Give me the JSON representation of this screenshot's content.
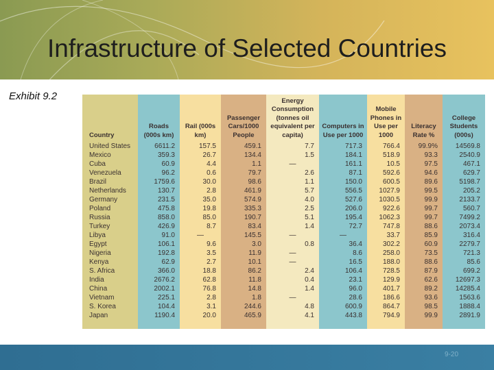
{
  "slide": {
    "title": "Infrastructure of Selected Countries",
    "exhibit": "Exhibit 9.2",
    "page_number": "9-20"
  },
  "table": {
    "headers": {
      "country": "Country",
      "roads": "Roads (000s km)",
      "rail": "Rail (000s km)",
      "passenger": "Passenger Cars/1000 People",
      "energy": "Energy Consumption (tonnes oil equivalent per capita)",
      "computers": "Computers in Use per 1000",
      "mobile": "Mobile Phones in Use per 1000",
      "literacy": "Literacy Rate %",
      "college": "College Students (000s)"
    },
    "rows": [
      {
        "country": "United States",
        "roads": "6611.2",
        "rail": "157.5",
        "passenger": "459.1",
        "energy": "7.7",
        "computers": "717.3",
        "mobile": "766.4",
        "literacy": "99.9%",
        "college": "14569.8"
      },
      {
        "country": "Mexico",
        "roads": "359.3",
        "rail": "26.7",
        "passenger": "134.4",
        "energy": "1.5",
        "computers": "184.1",
        "mobile": "518.9",
        "literacy": "93.3",
        "college": "2540.9"
      },
      {
        "country": "Cuba",
        "roads": "60.9",
        "rail": "4.4",
        "passenger": "1.1",
        "energy": "—",
        "computers": "161.1",
        "mobile": "10.5",
        "literacy": "97.5",
        "college": "467.1"
      },
      {
        "country": "Venezuela",
        "roads": "96.2",
        "rail": "0.6",
        "passenger": "79.7",
        "energy": "2.6",
        "computers": "87.1",
        "mobile": "592.6",
        "literacy": "94.6",
        "college": "629.7"
      },
      {
        "country": "Brazil",
        "roads": "1759.6",
        "rail": "30.0",
        "passenger": "98.6",
        "energy": "1.1",
        "computers": "150.0",
        "mobile": "600.5",
        "literacy": "89.6",
        "college": "5198.7"
      },
      {
        "country": "Netherlands",
        "roads": "130.7",
        "rail": "2.8",
        "passenger": "461.9",
        "energy": "5.7",
        "computers": "556.5",
        "mobile": "1027.9",
        "literacy": "99.5",
        "college": "205.2"
      },
      {
        "country": "Germany",
        "roads": "231.5",
        "rail": "35.0",
        "passenger": "574.9",
        "energy": "4.0",
        "computers": "527.6",
        "mobile": "1030.5",
        "literacy": "99.9",
        "college": "2133.7"
      },
      {
        "country": "Poland",
        "roads": "475.8",
        "rail": "19.8",
        "passenger": "335.3",
        "energy": "2.5",
        "computers": "206.0",
        "mobile": "922.6",
        "literacy": "99.7",
        "college": "560.7"
      },
      {
        "country": "Russia",
        "roads": "858.0",
        "rail": "85.0",
        "passenger": "190.7",
        "energy": "5.1",
        "computers": "195.4",
        "mobile": "1062.3",
        "literacy": "99.7",
        "college": "7499.2"
      },
      {
        "country": "Turkey",
        "roads": "426.9",
        "rail": "8.7",
        "passenger": "83.4",
        "energy": "1.4",
        "computers": "72.7",
        "mobile": "747.8",
        "literacy": "88.6",
        "college": "2073.4"
      },
      {
        "country": "Libya",
        "roads": "91.0",
        "rail": "—",
        "passenger": "145.5",
        "energy": "—",
        "computers": "—",
        "mobile": "33.7",
        "literacy": "85.9",
        "college": "316.4"
      },
      {
        "country": "Egypt",
        "roads": "106.1",
        "rail": "9.6",
        "passenger": "3.0",
        "energy": "0.8",
        "computers": "36.4",
        "mobile": "302.2",
        "literacy": "60.9",
        "college": "2279.7"
      },
      {
        "country": "Nigeria",
        "roads": "192.8",
        "rail": "3.5",
        "passenger": "11.9",
        "energy": "—",
        "computers": "8.6",
        "mobile": "258.0",
        "literacy": "73.5",
        "college": "721.3"
      },
      {
        "country": "Kenya",
        "roads": "62.9",
        "rail": "2.7",
        "passenger": "10.1",
        "energy": "—",
        "computers": "16.5",
        "mobile": "188.0",
        "literacy": "88.6",
        "college": "85.6"
      },
      {
        "country": "S. Africa",
        "roads": "366.0",
        "rail": "18.8",
        "passenger": "86.2",
        "energy": "2.4",
        "computers": "106.4",
        "mobile": "728.5",
        "literacy": "87.9",
        "college": "699.2"
      },
      {
        "country": "India",
        "roads": "2676.2",
        "rail": "62.8",
        "passenger": "11.8",
        "energy": "0.4",
        "computers": "23.1",
        "mobile": "129.9",
        "literacy": "62.6",
        "college": "12697.3"
      },
      {
        "country": "China",
        "roads": "2002.1",
        "rail": "76.8",
        "passenger": "14.8",
        "energy": "1.4",
        "computers": "96.0",
        "mobile": "401.7",
        "literacy": "89.2",
        "college": "14285.4"
      },
      {
        "country": "Vietnam",
        "roads": "225.1",
        "rail": "2.8",
        "passenger": "1.8",
        "energy": "—",
        "computers": "28.6",
        "mobile": "186.6",
        "literacy": "93.6",
        "college": "1563.6"
      },
      {
        "country": "S. Korea",
        "roads": "104.4",
        "rail": "3.1",
        "passenger": "244.6",
        "energy": "4.8",
        "computers": "600.9",
        "mobile": "864.7",
        "literacy": "98.5",
        "college": "1888.4"
      },
      {
        "country": "Japan",
        "roads": "1190.4",
        "rail": "20.0",
        "passenger": "465.9",
        "energy": "4.1",
        "computers": "443.8",
        "mobile": "794.9",
        "literacy": "99.9",
        "college": "2891.9"
      }
    ]
  }
}
